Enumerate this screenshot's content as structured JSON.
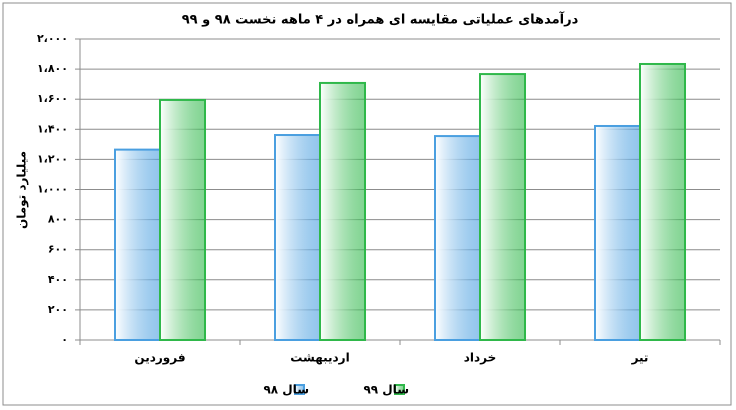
{
  "chart_data": {
    "type": "bar",
    "title": "درآمدهای عملیاتی مقایسه ای همراه در ۴ ماهه نخست ۹۸ و ۹۹",
    "y_label": "میلیارد تومان",
    "categories": [
      "فروردین",
      "اردیبهشت",
      "خرداد",
      "تیر"
    ],
    "series": [
      {
        "name": "سال ۹۸",
        "color": "#4a9fe0",
        "values": [
          1265,
          1362,
          1355,
          1422
        ]
      },
      {
        "name": "سال ۹۹",
        "color": "#2fb84a",
        "values": [
          1595,
          1708,
          1767,
          1834
        ]
      }
    ],
    "ylim": [
      0,
      2000
    ],
    "yticks": [
      {
        "value": 0,
        "label": "۰"
      },
      {
        "value": 200,
        "label": "۲۰۰"
      },
      {
        "value": 400,
        "label": "۴۰۰"
      },
      {
        "value": 600,
        "label": "۶۰۰"
      },
      {
        "value": 800,
        "label": "۸۰۰"
      },
      {
        "value": 1000,
        "label": "۱،۰۰۰"
      },
      {
        "value": 1200,
        "label": "۱،۲۰۰"
      },
      {
        "value": 1400,
        "label": "۱،۴۰۰"
      },
      {
        "value": 1600,
        "label": "۱،۶۰۰"
      },
      {
        "value": 1800,
        "label": "۱،۸۰۰"
      },
      {
        "value": 2000,
        "label": "۲،۰۰۰"
      }
    ],
    "grid": true
  }
}
